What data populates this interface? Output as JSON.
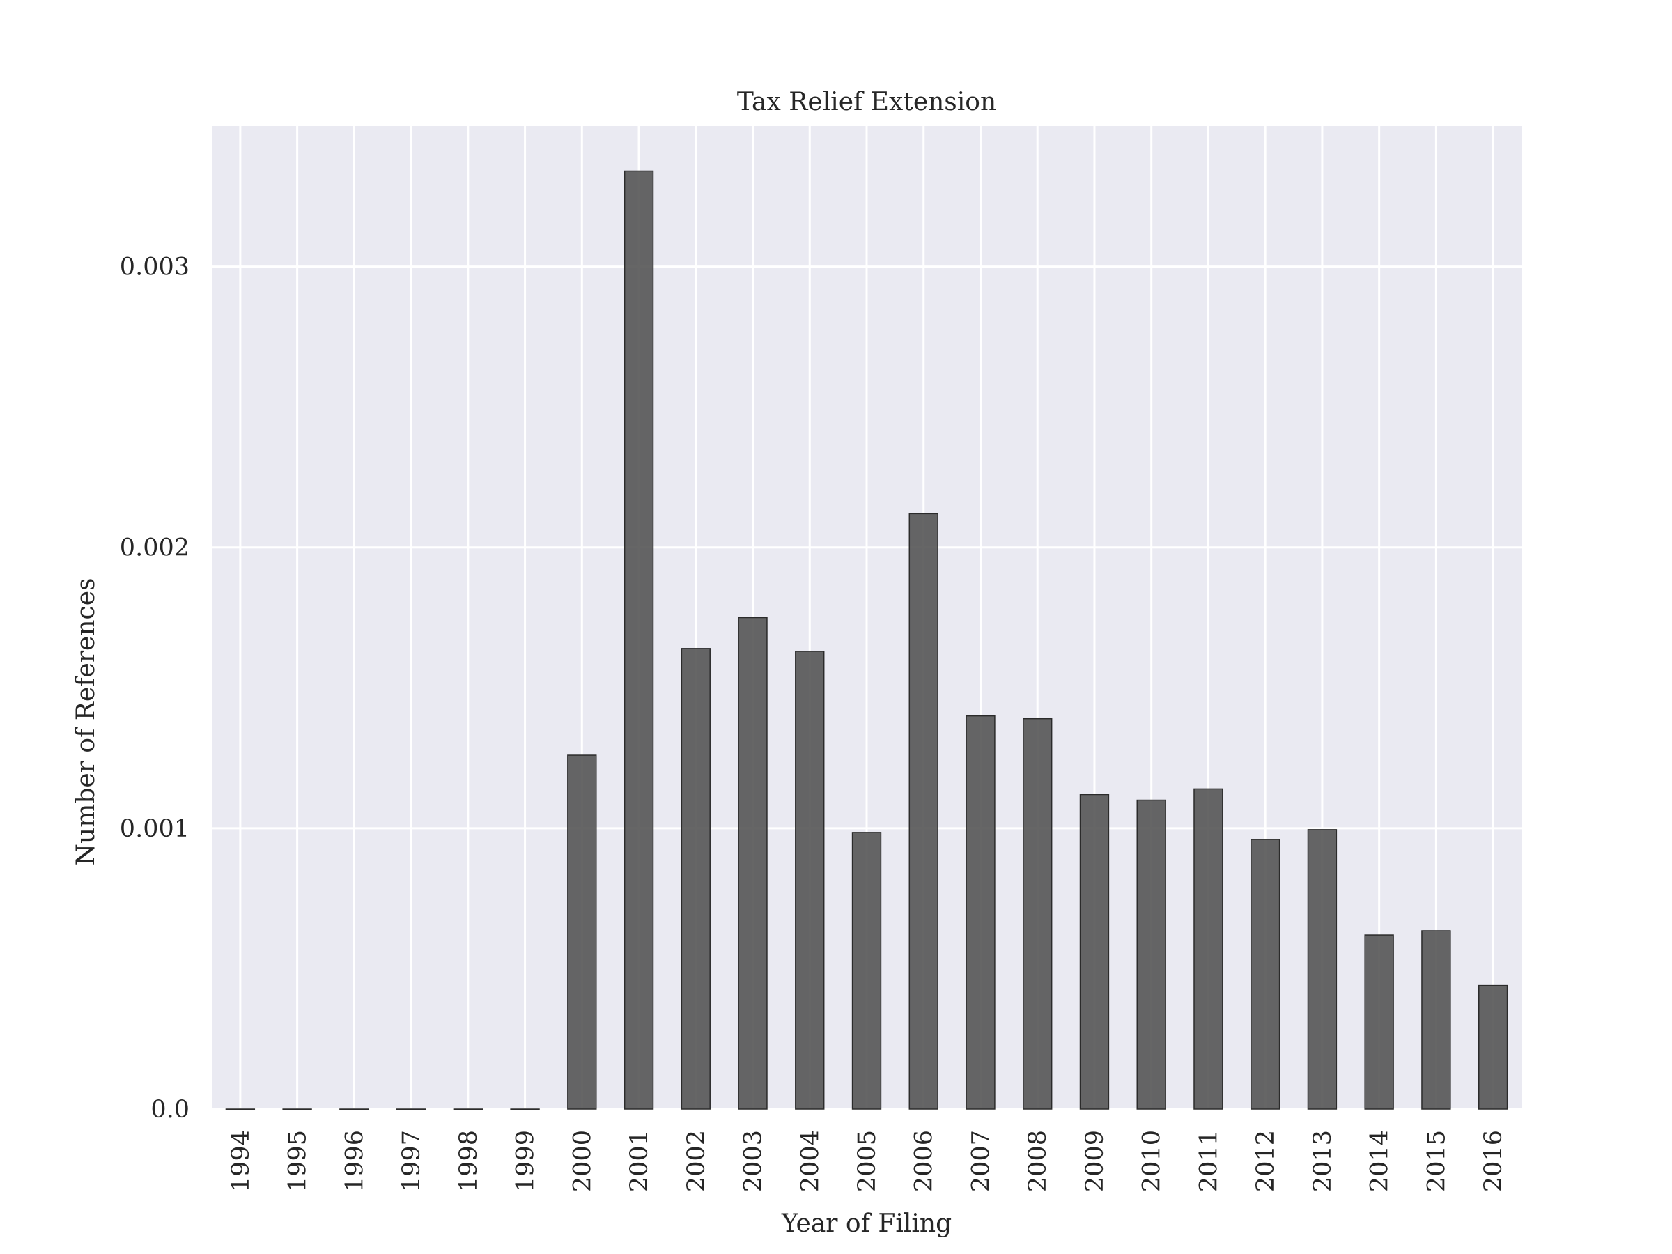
{
  "chart_data": {
    "type": "bar",
    "title": "Tax Relief Extension",
    "xlabel": "Year of Filing",
    "ylabel": "Number of References",
    "categories": [
      "1994",
      "1995",
      "1996",
      "1997",
      "1998",
      "1999",
      "2000",
      "2001",
      "2002",
      "2003",
      "2004",
      "2005",
      "2006",
      "2007",
      "2008",
      "2009",
      "2010",
      "2011",
      "2012",
      "2013",
      "2014",
      "2015",
      "2016"
    ],
    "values": [
      0,
      0,
      0,
      0,
      0,
      0,
      0.00126,
      0.00334,
      0.00164,
      0.00175,
      0.00163,
      0.000985,
      0.00212,
      0.0014,
      0.00139,
      0.00112,
      0.0011,
      0.00114,
      0.00096,
      0.000995,
      0.00062,
      0.000635,
      0.00044
    ],
    "ylim": [
      0,
      0.0035
    ],
    "yticks": [
      0.0,
      0.001,
      0.002,
      0.003
    ],
    "ytick_labels": [
      "0.0",
      "0.001",
      "0.002",
      "0.003"
    ],
    "grid": true,
    "colors": {
      "bar": "#555555",
      "bar_edge": "#2b2b2b",
      "plot_background": "#eaeaf2",
      "grid": "#ffffff",
      "text": "#262626"
    }
  }
}
